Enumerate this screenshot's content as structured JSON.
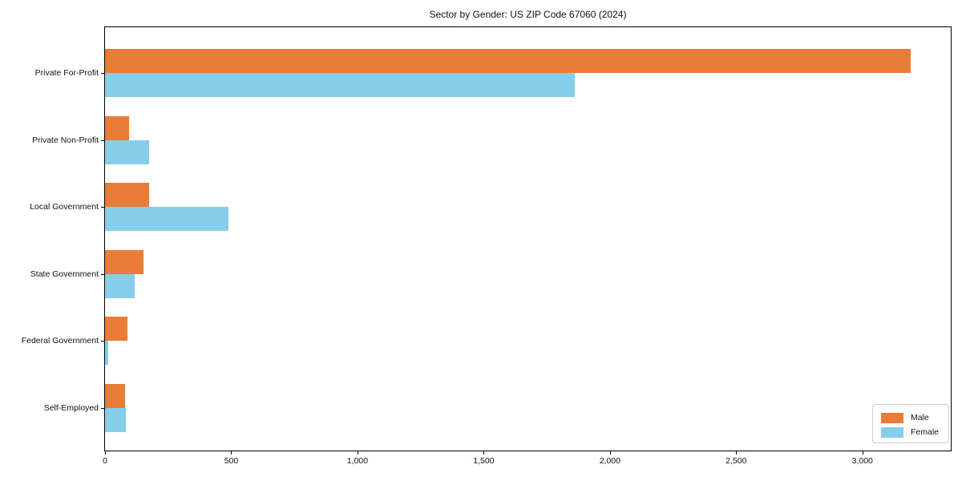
{
  "chart_data": {
    "type": "bar",
    "orientation": "horizontal",
    "title": "Sector by Gender: US ZIP Code 67060 (2024)",
    "categories": [
      "Private For-Profit",
      "Private Non-Profit",
      "Local Government",
      "State Government",
      "Federal Government",
      "Self-Employed"
    ],
    "series": [
      {
        "name": "Male",
        "color": "#e87d39",
        "values": [
          3190,
          96,
          174,
          152,
          88,
          79
        ]
      },
      {
        "name": "Female",
        "color": "#87ceeb",
        "values": [
          1860,
          174,
          489,
          118,
          12,
          81
        ]
      }
    ],
    "xlabel": "",
    "ylabel": "",
    "xlim": [
      0,
      3350
    ],
    "x_ticks": [
      0,
      500,
      1000,
      1500,
      2000,
      2500,
      3000
    ],
    "x_tick_labels": [
      "0",
      "500",
      "1,000",
      "1,500",
      "2,000",
      "2,500",
      "3,000"
    ],
    "grid": false,
    "legend_position": "lower right",
    "axis_color": "#000000",
    "background_color": "#ffffff"
  }
}
